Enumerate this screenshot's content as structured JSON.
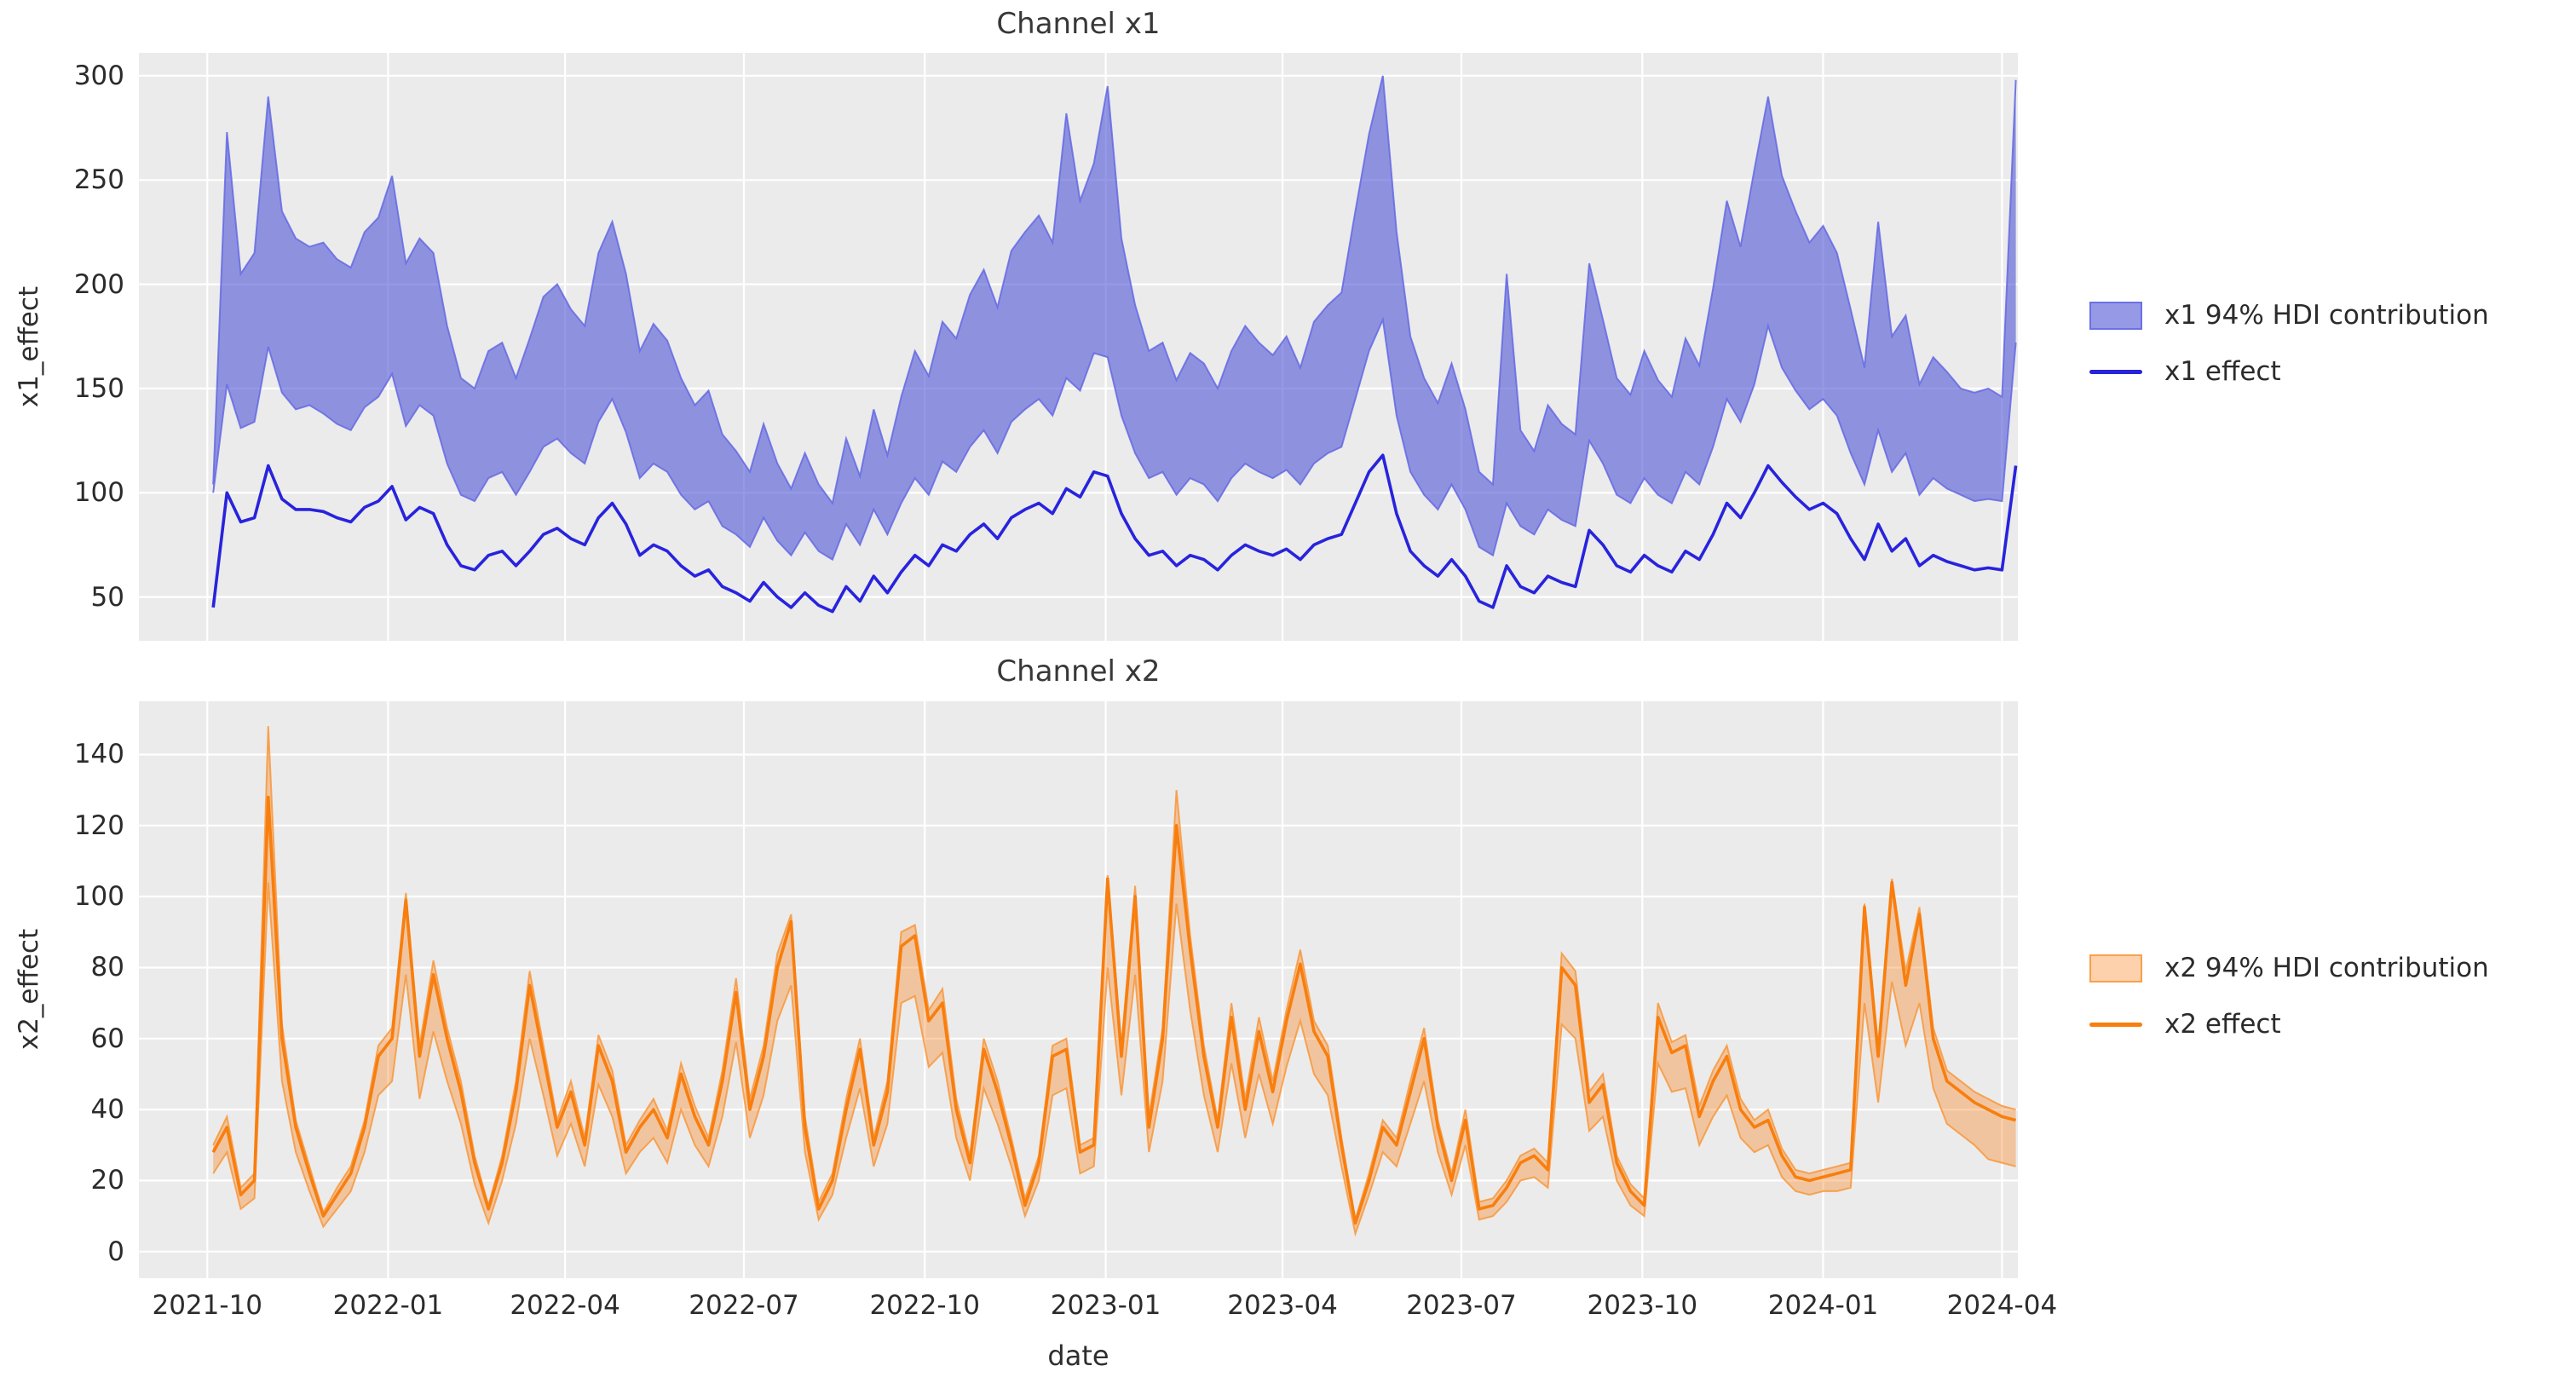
{
  "style": {
    "figure_bg": "#ffffff",
    "axes_bg": "#ebebeb",
    "grid_color": "#ffffff",
    "text_color": "#2b2b2b"
  },
  "chart_data": [
    {
      "type": "area",
      "title": "Channel x1",
      "ylabel": "x1_effect",
      "xlabel": "",
      "ylim": [
        29,
        311
      ],
      "yticks": [
        50,
        100,
        150,
        200,
        250,
        300
      ],
      "xlim": [
        -5.4,
        131.15
      ],
      "xtick_positions": [
        -0.43,
        12.71,
        25.57,
        38.57,
        51.71,
        64.86,
        77.71,
        90.71,
        103.86,
        117.0,
        130.0
      ],
      "xtick_labels": [],
      "grid": true,
      "legend_position": "center right, outside axes",
      "legend": [
        {
          "label": "x1 94% HDI contribution",
          "type": "patch"
        },
        {
          "label": "x1 effect",
          "type": "line"
        }
      ],
      "colors": {
        "band_fill": "rgba(80,86,214,0.6)",
        "band_edge": "rgba(100,105,228,0.85)",
        "line": "#2823dd"
      },
      "x_unit": "weeks since first point (weekly samples, Oct 2021 to Apr 2024)",
      "series": [
        {
          "name": "x1 94% HDI contribution lower",
          "values": [
            100,
            152,
            131,
            134,
            170,
            148,
            140,
            142,
            138,
            133,
            130,
            141,
            146,
            157,
            132,
            142,
            137,
            114,
            99,
            96,
            107,
            110,
            99,
            110,
            122,
            126,
            119,
            114,
            134,
            145,
            129,
            107,
            114,
            110,
            99,
            92,
            96,
            84,
            80,
            74,
            88,
            77,
            70,
            81,
            72,
            68,
            85,
            75,
            92,
            80,
            95,
            107,
            99,
            115,
            110,
            122,
            130,
            119,
            134,
            140,
            145,
            137,
            155,
            149,
            167,
            165,
            137,
            119,
            107,
            110,
            99,
            107,
            104,
            96,
            107,
            114,
            110,
            107,
            111,
            104,
            114,
            119,
            122,
            145,
            168,
            183,
            137,
            110,
            99,
            92,
            104,
            92,
            74,
            70,
            95,
            84,
            80,
            92,
            87,
            84,
            125,
            114,
            99,
            95,
            107,
            99,
            95,
            110,
            104,
            122,
            145,
            134,
            152,
            180,
            160,
            149,
            140,
            145,
            137,
            119,
            104,
            130,
            110,
            119,
            99,
            107,
            102,
            99,
            96,
            97,
            96,
            172
          ]
        },
        {
          "name": "x1 94% HDI contribution upper",
          "values": [
            104,
            273,
            205,
            215,
            290,
            235,
            222,
            218,
            220,
            212,
            208,
            225,
            232,
            252,
            210,
            222,
            215,
            180,
            155,
            150,
            168,
            172,
            155,
            174,
            194,
            200,
            188,
            180,
            215,
            230,
            205,
            168,
            181,
            173,
            155,
            142,
            149,
            128,
            120,
            110,
            133,
            114,
            102,
            119,
            104,
            95,
            126,
            108,
            140,
            118,
            146,
            168,
            156,
            182,
            174,
            195,
            207,
            189,
            216,
            225,
            233,
            220,
            282,
            240,
            258,
            295,
            222,
            190,
            168,
            172,
            154,
            167,
            162,
            150,
            168,
            180,
            172,
            166,
            175,
            160,
            182,
            190,
            196,
            235,
            272,
            300,
            225,
            175,
            155,
            143,
            162,
            140,
            110,
            104,
            205,
            130,
            120,
            142,
            133,
            128,
            210,
            183,
            155,
            147,
            168,
            154,
            146,
            174,
            161,
            198,
            240,
            218,
            255,
            290,
            252,
            235,
            220,
            228,
            215,
            188,
            160,
            230,
            175,
            185,
            152,
            165,
            158,
            150,
            148,
            150,
            146,
            298
          ]
        },
        {
          "name": "x1 effect",
          "values": [
            45,
            100,
            86,
            88,
            113,
            97,
            92,
            92,
            91,
            88,
            86,
            93,
            96,
            103,
            87,
            93,
            90,
            75,
            65,
            63,
            70,
            72,
            65,
            72,
            80,
            83,
            78,
            75,
            88,
            95,
            85,
            70,
            75,
            72,
            65,
            60,
            63,
            55,
            52,
            48,
            57,
            50,
            45,
            52,
            46,
            43,
            55,
            48,
            60,
            52,
            62,
            70,
            65,
            75,
            72,
            80,
            85,
            78,
            88,
            92,
            95,
            90,
            102,
            98,
            110,
            108,
            90,
            78,
            70,
            72,
            65,
            70,
            68,
            63,
            70,
            75,
            72,
            70,
            73,
            68,
            75,
            78,
            80,
            95,
            110,
            118,
            90,
            72,
            65,
            60,
            68,
            60,
            48,
            45,
            65,
            55,
            52,
            60,
            57,
            55,
            82,
            75,
            65,
            62,
            70,
            65,
            62,
            72,
            68,
            80,
            95,
            88,
            100,
            113,
            105,
            98,
            92,
            95,
            90,
            78,
            68,
            85,
            72,
            78,
            65,
            70,
            67,
            65,
            63,
            64,
            63,
            113
          ]
        }
      ]
    },
    {
      "type": "area",
      "title": "Channel x2",
      "ylabel": "x2_effect",
      "xlabel": "date",
      "ylim": [
        -7.5,
        155
      ],
      "yticks": [
        0,
        20,
        40,
        60,
        80,
        100,
        120,
        140
      ],
      "xlim": [
        -5.4,
        131.15
      ],
      "xtick_positions": [
        -0.43,
        12.71,
        25.57,
        38.57,
        51.71,
        64.86,
        77.71,
        90.71,
        103.86,
        117.0,
        130.0
      ],
      "xtick_labels": [
        "2021-10",
        "2022-01",
        "2022-04",
        "2022-07",
        "2022-10",
        "2023-01",
        "2023-04",
        "2023-07",
        "2023-10",
        "2024-01",
        "2024-04"
      ],
      "grid": true,
      "legend_position": "center right, outside axes",
      "legend": [
        {
          "label": "x2 94% HDI contribution",
          "type": "patch"
        },
        {
          "label": "x2 effect",
          "type": "line"
        }
      ],
      "colors": {
        "band_fill": "rgba(249,123,13,0.35)",
        "band_edge": "rgba(248,152,60,0.85)",
        "line": "#f87e0e"
      },
      "x_unit": "weeks since first point (weekly samples, Oct 2021 to Apr 2024)",
      "series": [
        {
          "name": "x2 94% HDI contribution lower",
          "values": [
            22,
            28,
            12,
            15,
            104,
            48,
            28,
            17,
            7,
            12,
            17,
            28,
            44,
            48,
            78,
            43,
            62,
            48,
            36,
            19,
            8,
            20,
            36,
            60,
            44,
            27,
            36,
            24,
            47,
            38,
            22,
            28,
            32,
            25,
            40,
            30,
            24,
            38,
            59,
            32,
            44,
            65,
            75,
            28,
            9,
            16,
            32,
            46,
            24,
            36,
            70,
            72,
            52,
            56,
            32,
            20,
            46,
            36,
            24,
            10,
            20,
            44,
            46,
            22,
            24,
            80,
            44,
            78,
            28,
            48,
            98,
            68,
            44,
            28,
            53,
            32,
            50,
            36,
            52,
            65,
            50,
            44,
            24,
            5,
            16,
            28,
            24,
            36,
            48,
            28,
            16,
            30,
            9,
            10,
            14,
            20,
            21,
            18,
            64,
            60,
            34,
            38,
            20,
            13,
            10,
            53,
            45,
            46,
            30,
            38,
            44,
            32,
            28,
            30,
            21,
            17,
            16,
            17,
            17,
            18,
            70,
            42,
            76,
            58,
            70,
            46,
            36,
            33,
            30,
            26,
            25,
            24
          ]
        },
        {
          "name": "x2 94% HDI contribution upper",
          "values": [
            30,
            38,
            18,
            22,
            148,
            64,
            37,
            24,
            11,
            18,
            24,
            37,
            58,
            63,
            101,
            58,
            82,
            63,
            48,
            27,
            13,
            27,
            48,
            79,
            58,
            37,
            48,
            32,
            61,
            51,
            30,
            37,
            43,
            34,
            53,
            41,
            32,
            51,
            77,
            43,
            58,
            84,
            95,
            38,
            14,
            22,
            43,
            60,
            32,
            48,
            90,
            92,
            68,
            74,
            43,
            27,
            60,
            48,
            32,
            15,
            27,
            58,
            60,
            30,
            32,
            106,
            58,
            103,
            38,
            63,
            130,
            89,
            58,
            37,
            70,
            43,
            66,
            48,
            68,
            85,
            65,
            58,
            32,
            9,
            22,
            37,
            32,
            48,
            63,
            37,
            22,
            40,
            14,
            15,
            20,
            27,
            29,
            25,
            84,
            79,
            45,
            50,
            27,
            19,
            15,
            70,
            59,
            61,
            41,
            51,
            58,
            43,
            37,
            40,
            29,
            23,
            22,
            23,
            24,
            25,
            98,
            58,
            105,
            79,
            97,
            63,
            51,
            48,
            45,
            43,
            41,
            40
          ]
        },
        {
          "name": "x2 effect",
          "values": [
            28,
            35,
            16,
            20,
            128,
            60,
            35,
            22,
            10,
            16,
            22,
            35,
            55,
            60,
            99,
            55,
            78,
            60,
            45,
            25,
            12,
            25,
            45,
            75,
            55,
            35,
            45,
            30,
            58,
            48,
            28,
            35,
            40,
            32,
            50,
            38,
            30,
            48,
            73,
            40,
            55,
            80,
            93,
            35,
            12,
            20,
            40,
            57,
            30,
            45,
            86,
            89,
            65,
            70,
            40,
            25,
            57,
            45,
            30,
            13,
            25,
            55,
            57,
            28,
            30,
            105,
            55,
            100,
            35,
            60,
            120,
            85,
            55,
            35,
            66,
            40,
            62,
            45,
            65,
            81,
            62,
            55,
            30,
            8,
            20,
            35,
            30,
            45,
            60,
            35,
            20,
            37,
            12,
            13,
            18,
            25,
            27,
            23,
            80,
            75,
            42,
            47,
            25,
            17,
            13,
            66,
            56,
            58,
            38,
            48,
            55,
            40,
            35,
            37,
            27,
            21,
            20,
            21,
            22,
            23,
            97,
            55,
            104,
            75,
            95,
            60,
            48,
            45,
            42,
            40,
            38,
            37
          ]
        }
      ]
    }
  ]
}
